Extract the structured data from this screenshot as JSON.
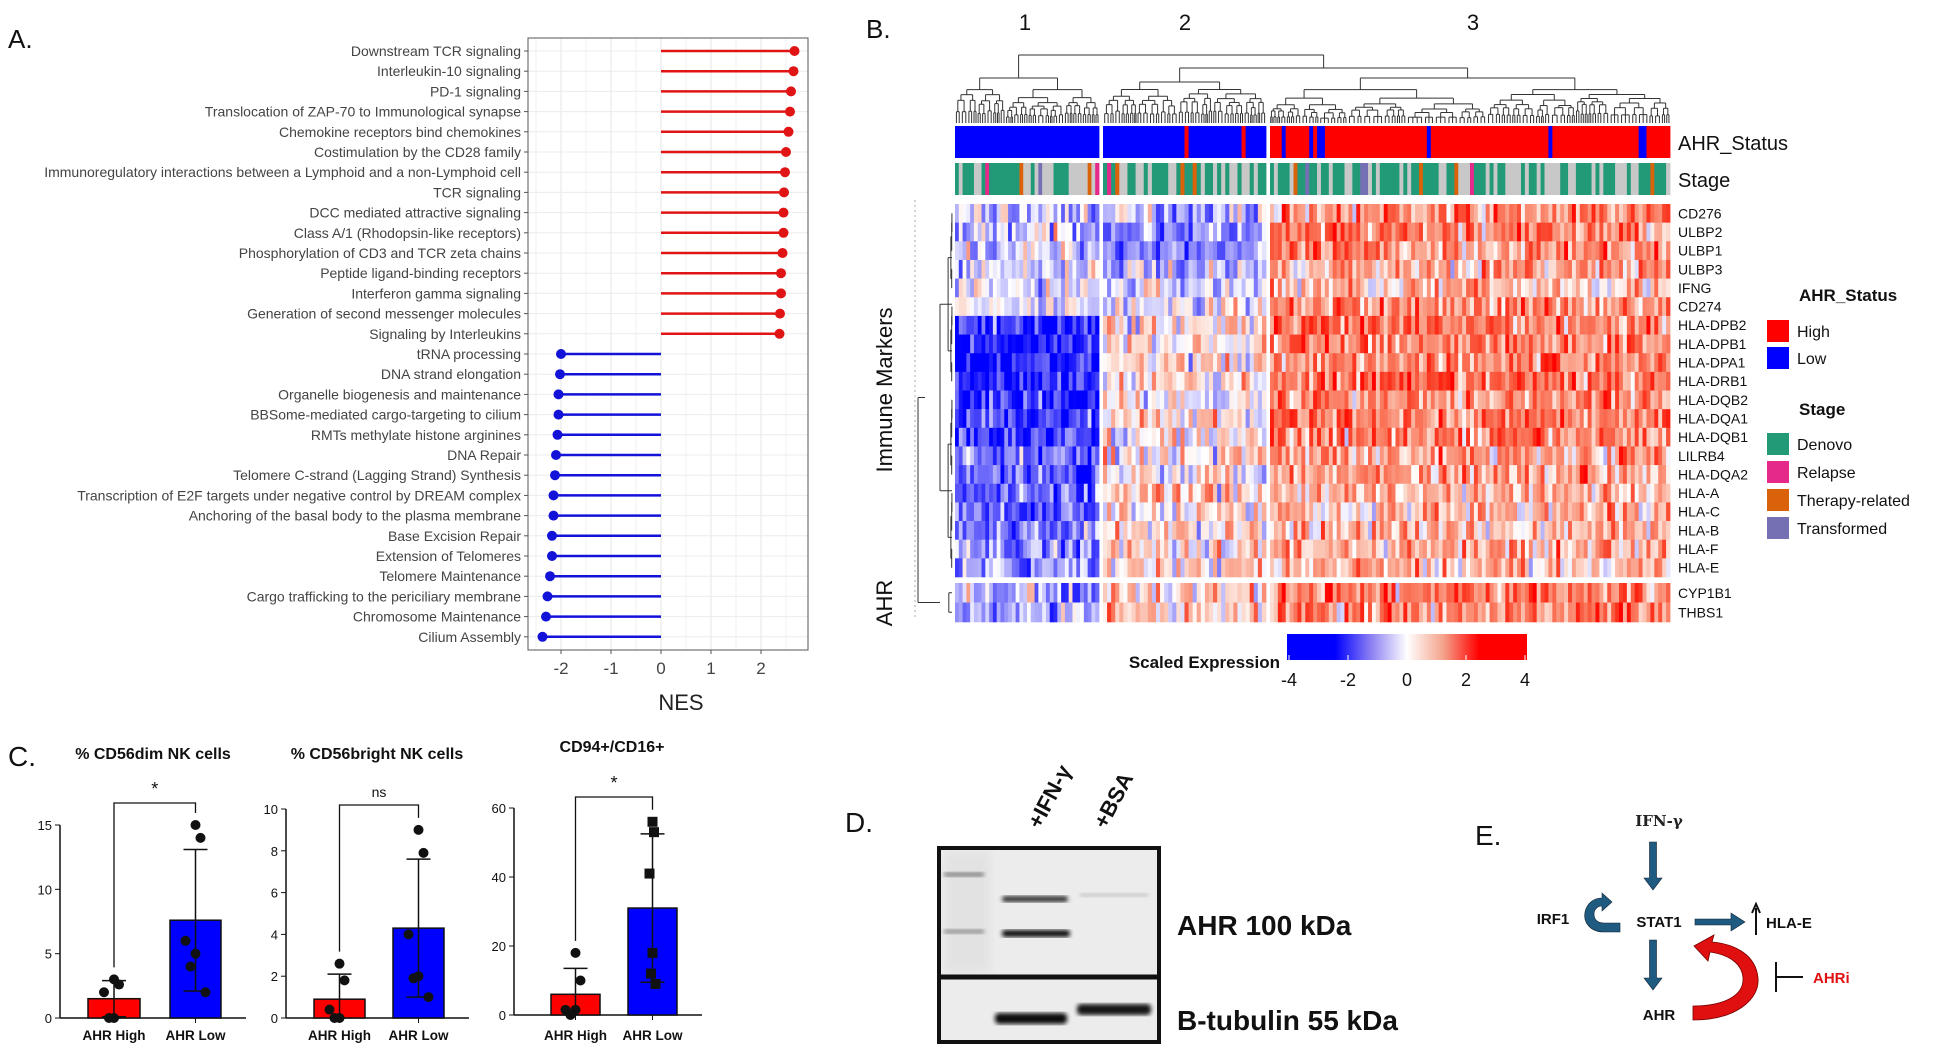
{
  "panel_labels": {
    "a": "A.",
    "b": "B.",
    "c": "C.",
    "d": "D.",
    "e": "E."
  },
  "colors": {
    "up": "#e01414",
    "down": "#1212d8",
    "high": "#ff0000",
    "low": "#0000ff",
    "denovo": "#229a78",
    "relapse": "#e5298a",
    "therapy": "#d9620a",
    "transformed": "#7570b3",
    "stage_na": "#c8c8c8",
    "arrow_blue": "#1f5b80",
    "arrow_red": "#e01010"
  },
  "chart_data": [
    {
      "type": "lollipop",
      "panel": "A",
      "xlabel": "NES",
      "xlim": [
        -2.5,
        2.8
      ],
      "xticks": [
        "-2",
        "-1",
        "0",
        "1",
        "2"
      ],
      "xtick_values": [
        -2,
        -1,
        0,
        1,
        2
      ],
      "grid": true,
      "pathways": [
        {
          "name": "Downstream TCR signaling",
          "nes": 2.67
        },
        {
          "name": "Interleukin-10 signaling",
          "nes": 2.65
        },
        {
          "name": "PD-1 signaling",
          "nes": 2.6
        },
        {
          "name": "Translocation of ZAP-70 to Immunological synapse",
          "nes": 2.58
        },
        {
          "name": "Chemokine receptors bind chemokines",
          "nes": 2.55
        },
        {
          "name": "Costimulation by the CD28 family",
          "nes": 2.5
        },
        {
          "name": "Immunoregulatory interactions between a Lymphoid and a non-Lymphoid cell",
          "nes": 2.48
        },
        {
          "name": "TCR signaling",
          "nes": 2.46
        },
        {
          "name": "DCC mediated attractive signaling",
          "nes": 2.45
        },
        {
          "name": "Class A/1 (Rhodopsin-like receptors)",
          "nes": 2.45
        },
        {
          "name": "Phosphorylation of CD3 and TCR zeta chains",
          "nes": 2.43
        },
        {
          "name": "Peptide ligand-binding receptors",
          "nes": 2.4
        },
        {
          "name": "Interferon gamma signaling",
          "nes": 2.4
        },
        {
          "name": "Generation of second messenger molecules",
          "nes": 2.38
        },
        {
          "name": "Signaling by Interleukins",
          "nes": 2.37
        },
        {
          "name": "tRNA processing",
          "nes": -2.0
        },
        {
          "name": "DNA strand elongation",
          "nes": -2.02
        },
        {
          "name": "Organelle biogenesis and maintenance",
          "nes": -2.05
        },
        {
          "name": "BBSome-mediated cargo-targeting to cilium",
          "nes": -2.05
        },
        {
          "name": "RMTs methylate histone arginines",
          "nes": -2.07
        },
        {
          "name": "DNA Repair",
          "nes": -2.1
        },
        {
          "name": "Telomere C-strand (Lagging Strand) Synthesis",
          "nes": -2.12
        },
        {
          "name": "Transcription of E2F targets under negative control by DREAM complex",
          "nes": -2.15
        },
        {
          "name": "Anchoring of the basal body to the plasma membrane",
          "nes": -2.15
        },
        {
          "name": "Base Excision Repair",
          "nes": -2.18
        },
        {
          "name": "Extension of Telomeres",
          "nes": -2.18
        },
        {
          "name": "Telomere Maintenance",
          "nes": -2.22
        },
        {
          "name": "Cargo trafficking to the periciliary membrane",
          "nes": -2.27
        },
        {
          "name": "Chromosome Maintenance",
          "nes": -2.3
        },
        {
          "name": "Cilium Assembly",
          "nes": -2.37
        }
      ]
    },
    {
      "type": "heatmap",
      "panel": "B",
      "cluster_labels": [
        "1",
        "2",
        "3"
      ],
      "samples_per_cluster": [
        38,
        40,
        102
      ],
      "annotation_tracks": [
        "AHR_Status",
        "Stage"
      ],
      "row_groups": [
        {
          "label": "Immune Markers",
          "genes": [
            "CD276",
            "ULBP2",
            "ULBP1",
            "ULBP3",
            "IFNG",
            "CD274",
            "HLA-DPB2",
            "HLA-DPB1",
            "HLA-DPA1",
            "HLA-DRB1",
            "HLA-DQB2",
            "HLA-DQA1",
            "HLA-DQB1",
            "LILRB4",
            "HLA-DQA2",
            "HLA-A",
            "HLA-C",
            "HLA-B",
            "HLA-F",
            "HLA-E"
          ],
          "cluster_mean_expression": [
            [
              -0.5,
              -0.6,
              1.0
            ],
            [
              -0.4,
              -1.0,
              1.1
            ],
            [
              -0.4,
              -1.0,
              1.0
            ],
            [
              -0.3,
              -0.6,
              0.8
            ],
            [
              -0.3,
              -0.3,
              0.6
            ],
            [
              -0.4,
              -0.2,
              1.1
            ],
            [
              -2.0,
              0.2,
              1.2
            ],
            [
              -2.2,
              0.2,
              1.2
            ],
            [
              -2.2,
              0.2,
              1.2
            ],
            [
              -2.0,
              0.2,
              1.3
            ],
            [
              -2.0,
              0.1,
              1.1
            ],
            [
              -1.8,
              0.2,
              1.2
            ],
            [
              -1.8,
              0.1,
              1.1
            ],
            [
              -1.2,
              0.2,
              0.9
            ],
            [
              -1.5,
              0.2,
              1.0
            ],
            [
              -1.3,
              0.3,
              0.6
            ],
            [
              -1.4,
              0.3,
              0.6
            ],
            [
              -1.2,
              0.3,
              0.6
            ],
            [
              -1.0,
              0.4,
              0.7
            ],
            [
              -1.0,
              0.3,
              0.6
            ]
          ]
        },
        {
          "label": "AHR",
          "genes": [
            "CYP1B1",
            "THBS1"
          ],
          "cluster_mean_expression": [
            [
              -0.8,
              0.3,
              1.2
            ],
            [
              -0.8,
              0.4,
              1.1
            ]
          ]
        }
      ],
      "colorbar": {
        "title": "Scaled Expression",
        "ticks": [
          "-4",
          "-2",
          "0",
          "2",
          "4"
        ],
        "range": [
          -4,
          4
        ]
      },
      "legend": {
        "ahr_title": "AHR_Status",
        "ahr_items": [
          "High",
          "Low"
        ],
        "stage_title": "Stage",
        "stage_items": [
          "Denovo",
          "Relapse",
          "Therapy-related",
          "Transformed"
        ]
      }
    },
    {
      "type": "bar",
      "panel": "C",
      "title": "% CD56dim NK cells",
      "categories": [
        "AHR High",
        "AHR Low"
      ],
      "ylim": [
        0,
        15
      ],
      "yticks": [
        "0",
        "5",
        "10",
        "15"
      ],
      "ytick_values": [
        0,
        5,
        10,
        15
      ],
      "means": [
        1.5,
        7.6
      ],
      "sd": [
        1.4,
        5.5
      ],
      "points": [
        [
          3.0,
          2.6,
          2.0,
          0,
          0
        ],
        [
          15,
          14,
          6,
          5,
          4,
          2
        ]
      ],
      "significance": "*"
    },
    {
      "type": "bar",
      "panel": "C",
      "title": "% CD56bright NK cells",
      "categories": [
        "AHR High",
        "AHR Low"
      ],
      "ylim": [
        0,
        10
      ],
      "yticks": [
        "0",
        "2",
        "4",
        "6",
        "8",
        "10"
      ],
      "ytick_values": [
        0,
        2,
        4,
        6,
        8,
        10
      ],
      "means": [
        0.9,
        4.3
      ],
      "sd": [
        1.2,
        3.3
      ],
      "points": [
        [
          2.6,
          1.8,
          0.4,
          0,
          0
        ],
        [
          9,
          7.9,
          4,
          2,
          1.9,
          1.0
        ]
      ],
      "significance": "ns"
    },
    {
      "type": "bar",
      "panel": "C",
      "title": "CD94+/CD16+",
      "categories": [
        "AHR High",
        "AHR Low"
      ],
      "ylim": [
        0,
        60
      ],
      "yticks": [
        "0",
        "20",
        "40",
        "60"
      ],
      "ytick_values": [
        0,
        20,
        40,
        60
      ],
      "means": [
        6,
        31
      ],
      "sd": [
        7.5,
        21.5
      ],
      "points": [
        [
          18,
          10,
          1.5,
          1.5,
          0
        ],
        [
          56,
          53,
          41,
          18,
          12,
          9
        ]
      ],
      "significance": "*"
    }
  ],
  "blot": {
    "lanes": [
      "+IFN-γ",
      "+BSA"
    ],
    "bands": [
      "AHR 100 kDa",
      "B-tubulin 55 kDa"
    ]
  },
  "pathway": {
    "ifng": "IFN-γ",
    "irf1": "IRF1",
    "stat1": "STAT1",
    "hlae": "HLA-E",
    "ahr": "AHR",
    "ahri": "AHRi"
  }
}
